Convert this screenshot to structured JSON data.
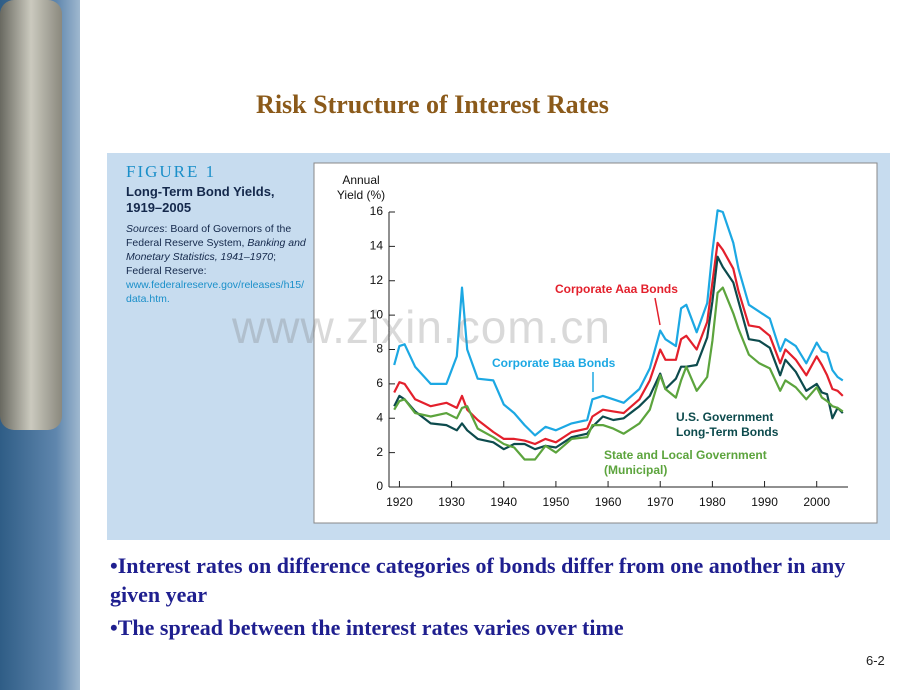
{
  "slide_title": "Risk Structure of Interest Rates",
  "figure_number": "FIGURE 1",
  "figure_title": "Long-Term Bond Yields, 1919–2005",
  "sources": [
    "Sources",
    ": Board of Governors of the Federal Reserve System, ",
    "Banking and Monetary Statistics, 1941–1970",
    "; Federal Reserve: ",
    "www.federalreserve.gov/releases/h15/data.htm."
  ],
  "watermark": "www.zixin.com.cn",
  "bullets": [
    "•Interest rates on difference categories of bonds differ from one another in any given year",
    "•The spread between the interest rates varies over time"
  ],
  "page_number": "6-2",
  "chart_data": {
    "type": "line",
    "y_label": "Annual Yield (%)",
    "x": [
      1919,
      1920,
      1921,
      1923,
      1926,
      1929,
      1931,
      1932,
      1933,
      1935,
      1938,
      1940,
      1942,
      1944,
      1946,
      1948,
      1950,
      1953,
      1956,
      1957,
      1959,
      1961,
      1963,
      1966,
      1968,
      1970,
      1971,
      1973,
      1974,
      1975,
      1977,
      1979,
      1980,
      1981,
      1982,
      1984,
      1985,
      1987,
      1989,
      1991,
      1993,
      1994,
      1996,
      1998,
      2000,
      2001,
      2002,
      2003,
      2004,
      2005
    ],
    "xlim": [
      1918,
      2006
    ],
    "xticks": [
      1920,
      1930,
      1940,
      1950,
      1960,
      1970,
      1980,
      1990,
      2000
    ],
    "ylim": [
      0,
      16
    ],
    "yticks": [
      0,
      2,
      4,
      6,
      8,
      10,
      12,
      14,
      16
    ],
    "series": [
      {
        "name": "Corporate Baa Bonds",
        "color": "#1ca8e3",
        "values": [
          7.1,
          8.2,
          8.3,
          7.0,
          6.0,
          6.0,
          7.6,
          11.6,
          8.0,
          6.3,
          6.2,
          4.8,
          4.3,
          3.6,
          3.0,
          3.5,
          3.3,
          3.7,
          3.9,
          5.1,
          5.3,
          5.1,
          4.9,
          5.7,
          6.9,
          9.1,
          8.6,
          8.2,
          10.4,
          10.6,
          9.0,
          10.7,
          13.7,
          16.1,
          16.0,
          14.2,
          12.7,
          10.6,
          10.2,
          9.8,
          7.9,
          8.6,
          8.2,
          7.2,
          8.4,
          7.9,
          7.8,
          6.8,
          6.4,
          6.2
        ]
      },
      {
        "name": "Corporate Aaa Bonds",
        "color": "#e3202c",
        "values": [
          5.5,
          6.1,
          6.0,
          5.1,
          4.7,
          4.9,
          4.6,
          5.3,
          4.5,
          3.9,
          3.2,
          2.8,
          2.8,
          2.7,
          2.5,
          2.8,
          2.6,
          3.2,
          3.4,
          4.1,
          4.5,
          4.4,
          4.3,
          5.1,
          6.2,
          8.0,
          7.4,
          7.4,
          8.6,
          8.8,
          8.0,
          9.6,
          11.9,
          14.2,
          13.8,
          12.7,
          11.4,
          9.4,
          9.3,
          8.8,
          7.2,
          8.0,
          7.4,
          6.5,
          7.6,
          7.1,
          6.5,
          5.7,
          5.6,
          5.3
        ]
      },
      {
        "name": "U.S. Government Long-Term Bonds",
        "color": "#0d4b4d",
        "values": [
          4.7,
          5.3,
          5.1,
          4.4,
          3.7,
          3.6,
          3.3,
          3.7,
          3.3,
          2.8,
          2.6,
          2.2,
          2.5,
          2.5,
          2.2,
          2.4,
          2.3,
          2.9,
          3.1,
          3.5,
          4.1,
          3.9,
          4.0,
          4.7,
          5.3,
          6.6,
          5.7,
          6.3,
          7.0,
          7.0,
          7.1,
          8.7,
          10.8,
          13.4,
          12.8,
          11.9,
          10.8,
          8.6,
          8.5,
          8.1,
          6.5,
          7.4,
          6.7,
          5.6,
          6.0,
          5.5,
          5.4,
          4.0,
          4.6,
          4.3
        ]
      },
      {
        "name": "State and Local Government (Municipal)",
        "color": "#5ca43d",
        "values": [
          4.5,
          5.0,
          5.1,
          4.3,
          4.1,
          4.3,
          4.0,
          4.6,
          4.7,
          3.4,
          2.9,
          2.5,
          2.3,
          1.6,
          1.6,
          2.4,
          2.0,
          2.8,
          2.9,
          3.6,
          3.6,
          3.4,
          3.1,
          3.7,
          4.5,
          6.5,
          5.7,
          5.2,
          6.2,
          7.0,
          5.6,
          6.4,
          8.5,
          11.3,
          11.6,
          10.1,
          9.2,
          7.7,
          7.2,
          6.9,
          5.6,
          6.2,
          5.8,
          5.1,
          5.8,
          5.2,
          5.0,
          4.7,
          4.6,
          4.4
        ]
      }
    ]
  }
}
